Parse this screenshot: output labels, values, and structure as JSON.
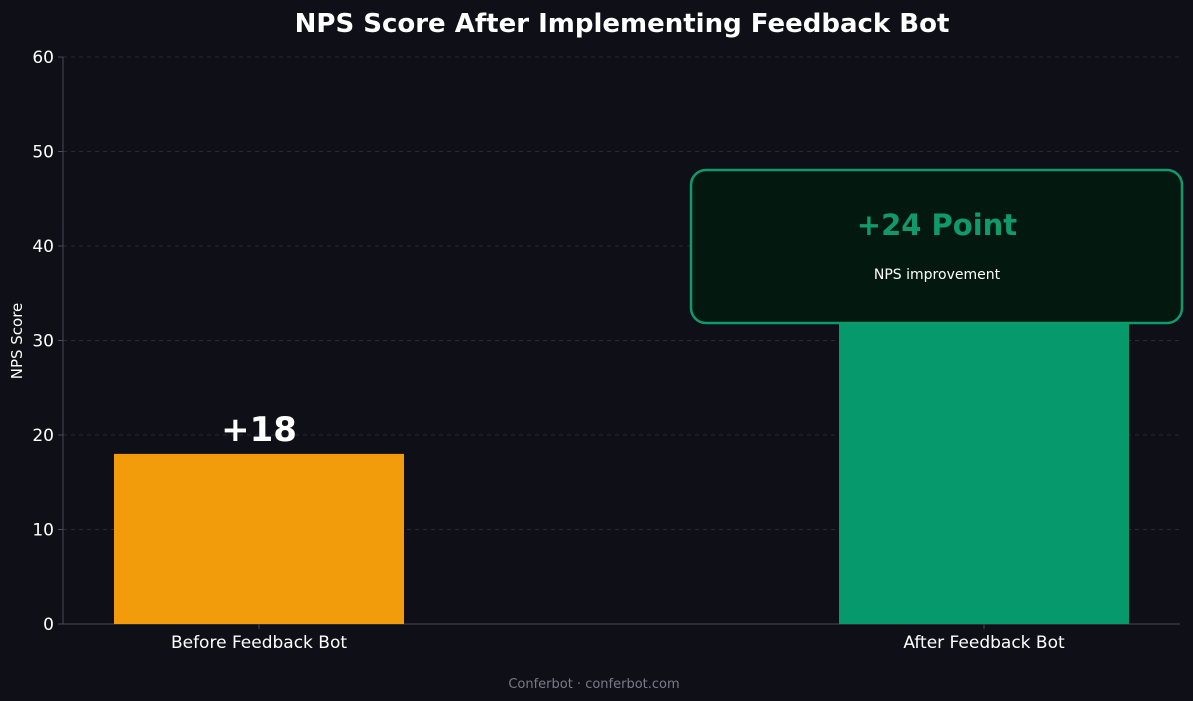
{
  "chart_data": {
    "type": "bar",
    "title": "NPS Score After Implementing Feedback Bot",
    "xlabel": "",
    "ylabel": "NPS Score",
    "categories": [
      "Before Feedback Bot",
      "After Feedback Bot"
    ],
    "values": [
      18,
      42
    ],
    "data_labels": [
      "+18",
      ""
    ],
    "bar_colors": [
      "#f39c0b",
      "#06996b"
    ],
    "ylim": [
      0,
      60
    ],
    "yticks": [
      0,
      10,
      20,
      30,
      40,
      50,
      60
    ],
    "ytick_labels": [
      "0",
      "10",
      "20",
      "30",
      "40",
      "50",
      "60"
    ],
    "grid": true,
    "legend": "none",
    "callout": {
      "value_text": "+24 Point",
      "subtitle": "NPS improvement",
      "accent_color": "#109a6b",
      "box_fill": "#03190f"
    }
  },
  "footer": {
    "text": "Conferbot · conferbot.com"
  },
  "colors": {
    "background": "#0f0f17",
    "grid": "#2a2a38",
    "axis": "#4a4a58",
    "text": "#ffffff",
    "footer": "#7a7a88"
  }
}
